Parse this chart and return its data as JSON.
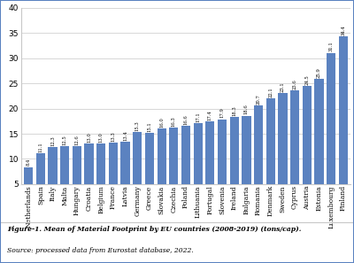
{
  "countries": [
    "Netherlands",
    "Spain",
    "Italy",
    "Malta",
    "Hungary",
    "Croatia",
    "Belgium",
    "France",
    "Latvia",
    "Germany",
    "Greece",
    "Slovakia",
    "Czechia",
    "Poland",
    "Lithuania",
    "Portugal",
    "Slovenia",
    "Ireland",
    "Bulgaria",
    "Romania",
    "Denmark",
    "Sweden",
    "Cyprus",
    "Austria",
    "Estonia",
    "Luxembourg",
    "Finland"
  ],
  "values": [
    8.4,
    11.1,
    12.3,
    12.5,
    12.6,
    13.0,
    13.0,
    13.3,
    13.4,
    15.3,
    15.1,
    16.0,
    16.3,
    16.6,
    17.1,
    17.4,
    17.9,
    18.3,
    18.6,
    20.7,
    22.1,
    23.1,
    23.6,
    24.5,
    25.9,
    31.1,
    34.4
  ],
  "bar_color": "#5B82C0",
  "bar_edgecolor": "none",
  "ylim": [
    5,
    40
  ],
  "yticks": [
    5,
    10,
    15,
    20,
    25,
    30,
    35,
    40
  ],
  "value_fontsize": 3.8,
  "xlabel_fontsize": 5.5,
  "ytick_fontsize": 6.5,
  "caption_bold": "Figure-1. Mean of Material Footprint by EU countries (2008-2019) (tons/cap).",
  "caption_normal": "Source: processed data from Eurostat database, 2022.",
  "caption_fontsize": 5.5,
  "bg_color": "#FFFFFF",
  "grid_color": "#C8C8C8",
  "border_color": "#5B82C0"
}
